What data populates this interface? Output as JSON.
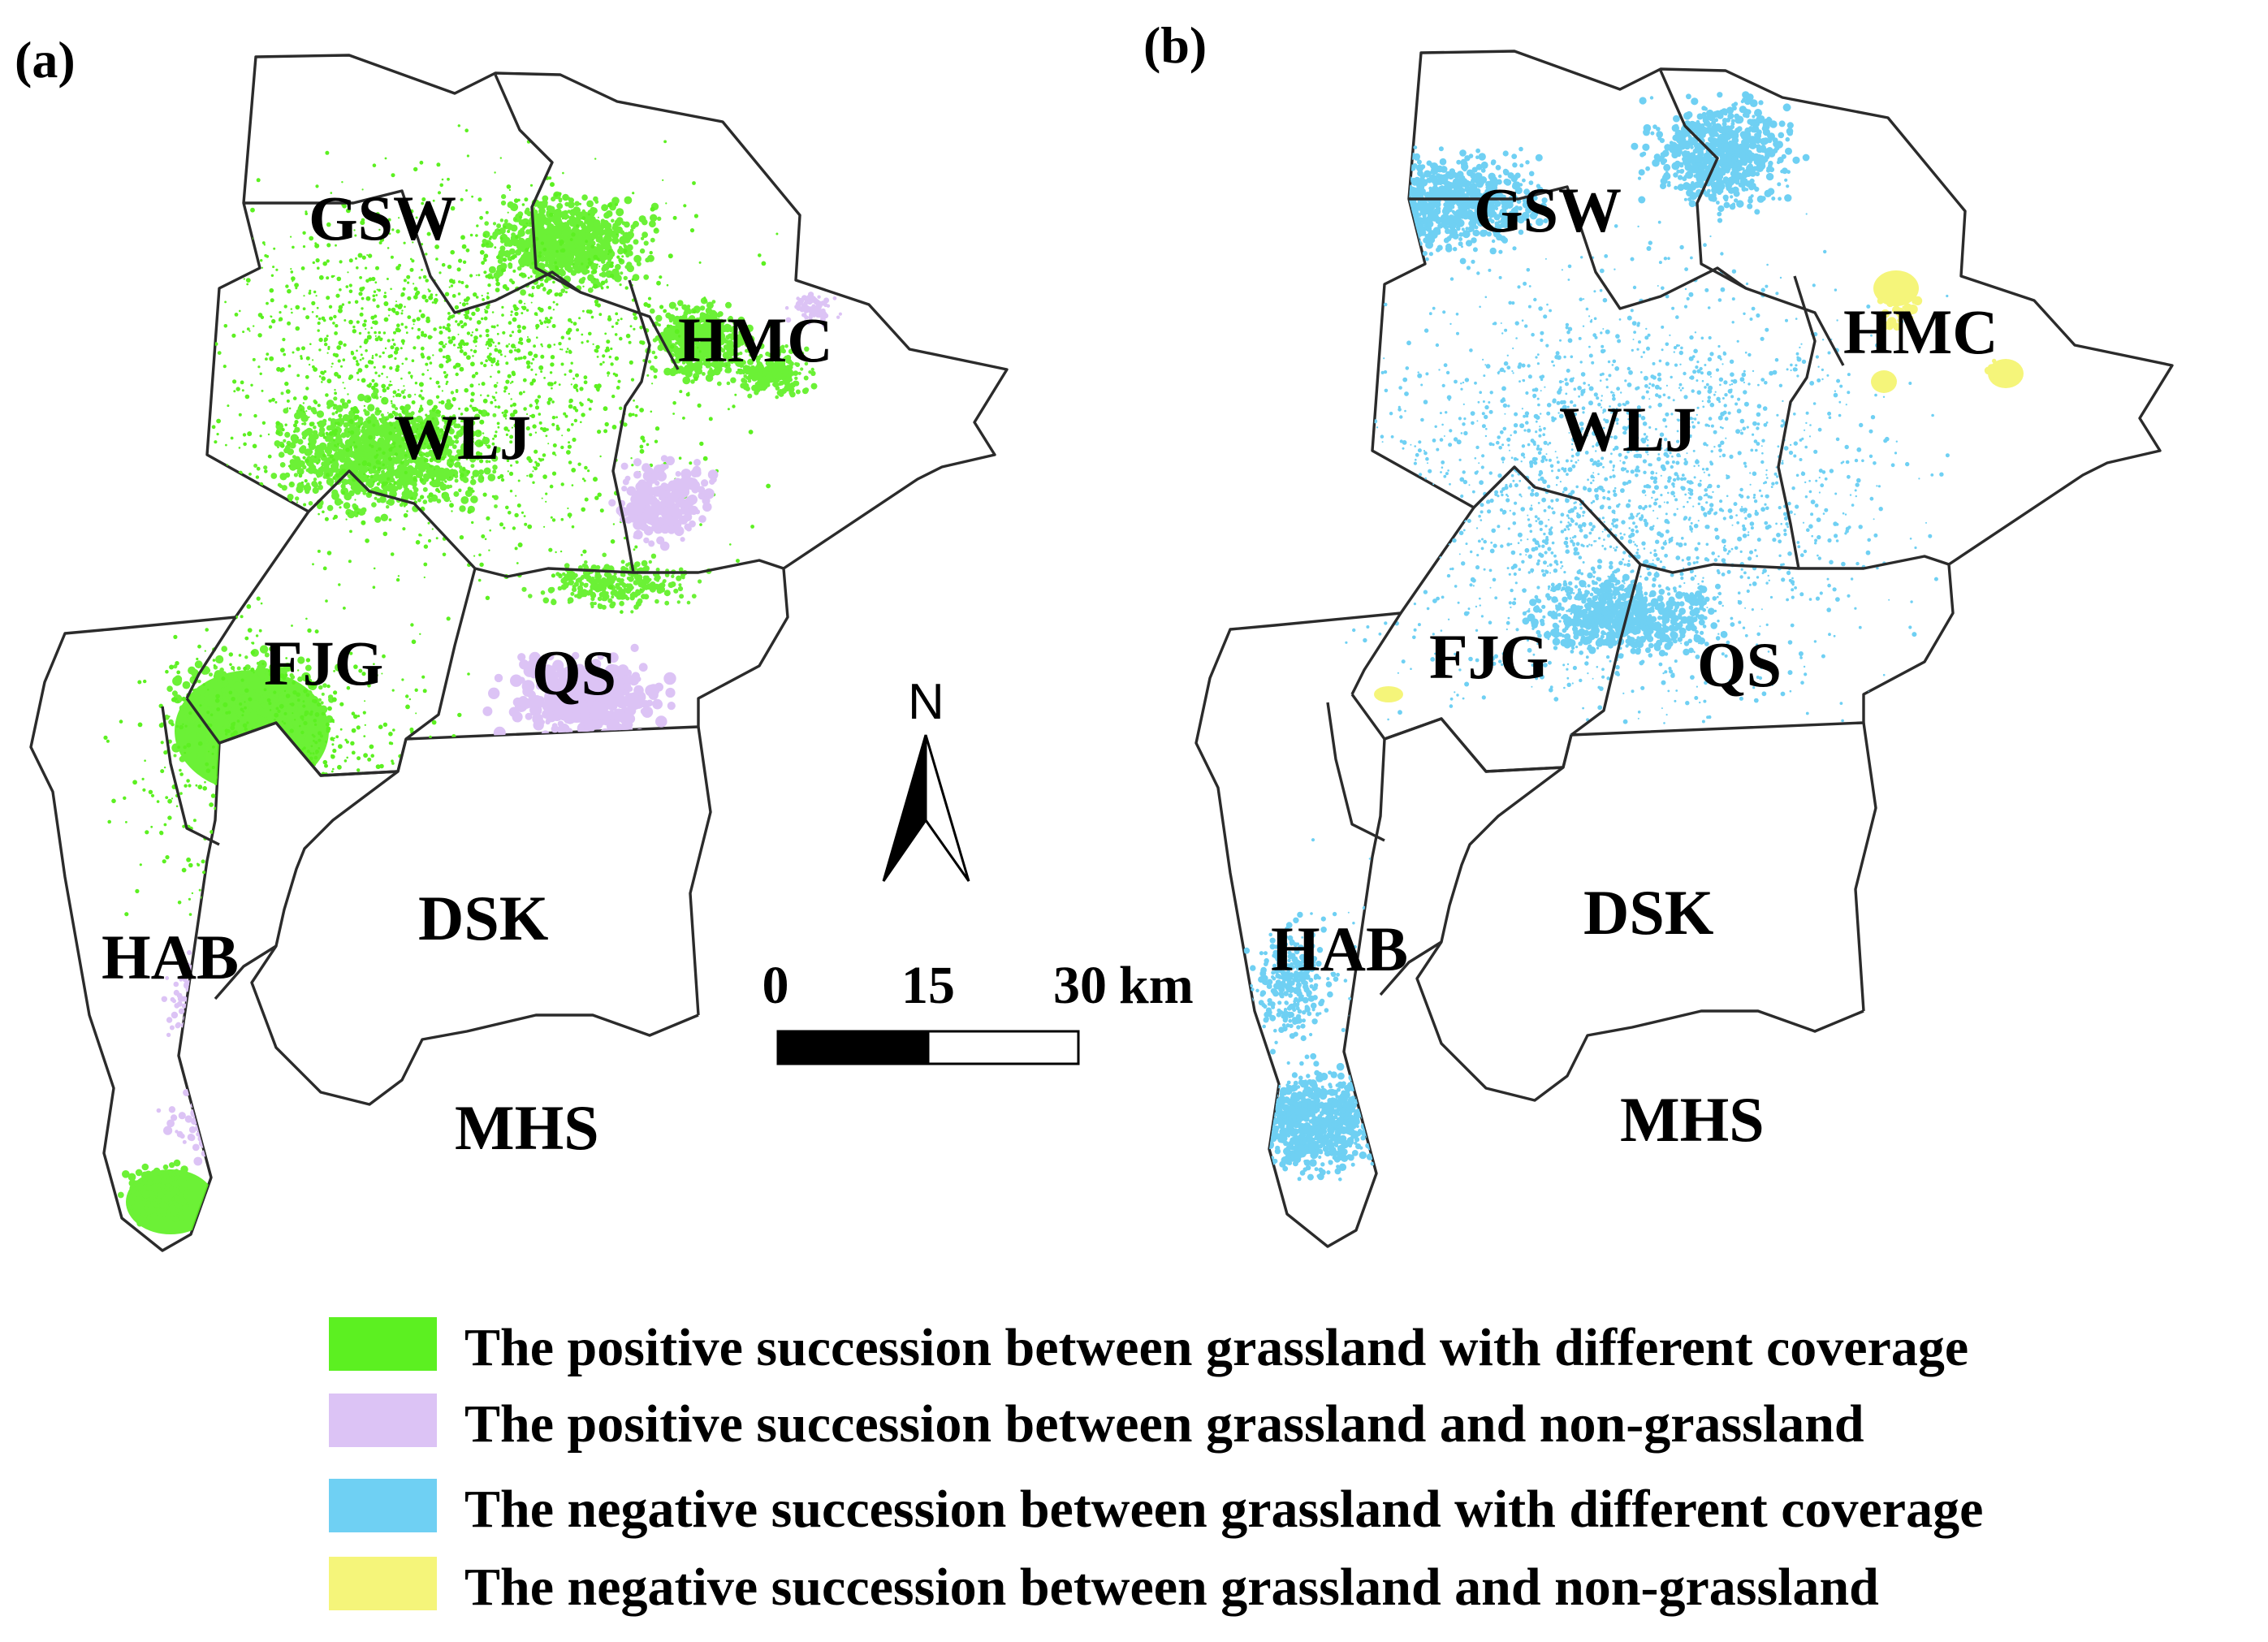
{
  "panels": [
    {
      "id": "a",
      "label": "(a)"
    },
    {
      "id": "b",
      "label": "(b)"
    }
  ],
  "districts": [
    "GSW",
    "HMC",
    "WLJ",
    "FJG",
    "QS",
    "DSK",
    "HAB",
    "MHS"
  ],
  "north_arrow": {
    "label": "N"
  },
  "scale_bar": {
    "ticks": [
      "0",
      "15",
      "30"
    ],
    "unit": "km"
  },
  "legend": [
    {
      "label": "The positive succession  between grassland with different coverage",
      "color": "#5cf021"
    },
    {
      "label": "The positive succession between grassland and non-grassland",
      "color": "#dcc3f5"
    },
    {
      "label": "The negative succession between grassland with different coverage",
      "color": "#6fd0f3"
    },
    {
      "label": "The negative succession between grassland and non-grassland",
      "color": "#f5f57a"
    }
  ]
}
